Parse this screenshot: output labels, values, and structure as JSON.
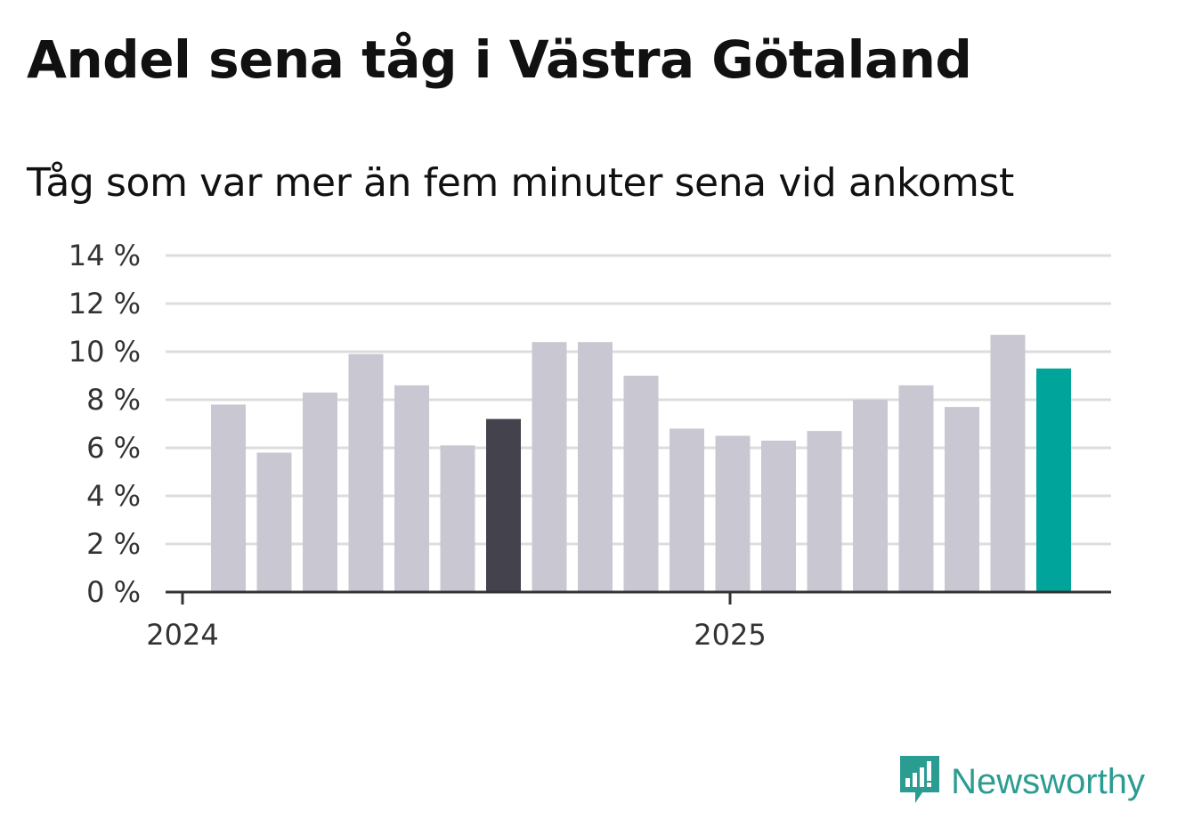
{
  "title": "Andel sena tåg i Västra Götaland",
  "subtitle": "Tåg som var mer än fem minuter sena vid ankomst",
  "brand": {
    "name": "Newsworthy",
    "icon": "newsworthy-logo-icon",
    "color": "#2b9c92"
  },
  "colors": {
    "default_bar": "#c9c8d2",
    "highlight_dark": "#44424d",
    "highlight_accent": "#00a49a",
    "grid": "#dddddd",
    "axis": "#333333"
  },
  "chart_data": {
    "type": "bar",
    "title": "Andel sena tåg i Västra Götaland",
    "subtitle": "Tåg som var mer än fem minuter sena vid ankomst",
    "xlabel": "",
    "ylabel": "",
    "unit": "%",
    "ylim": [
      0,
      14
    ],
    "yticks": [
      0,
      2,
      4,
      6,
      8,
      10,
      12,
      14
    ],
    "ytick_labels": [
      "0 %",
      "2 %",
      "4 %",
      "6 %",
      "8 %",
      "10 %",
      "12 %",
      "14 %"
    ],
    "xtick_labels": [
      "2024",
      "2025"
    ],
    "grid": true,
    "legend": "none",
    "categories": [
      "2024-01",
      "2024-02",
      "2024-03",
      "2024-04",
      "2024-05",
      "2024-06",
      "2024-07",
      "2024-08",
      "2024-09",
      "2024-10",
      "2024-11",
      "2024-12",
      "2025-01",
      "2025-02",
      "2025-03",
      "2025-04",
      "2025-05",
      "2025-06",
      "2025-07",
      "2025-08"
    ],
    "values": [
      null,
      7.8,
      5.8,
      8.3,
      9.9,
      8.6,
      6.1,
      7.2,
      10.4,
      10.4,
      9.0,
      6.8,
      6.5,
      6.3,
      6.7,
      8.0,
      8.6,
      7.7,
      10.7,
      9.3
    ],
    "highlight": [
      {
        "index": 7,
        "color": "#44424d"
      },
      {
        "index": 19,
        "color": "#00a49a"
      }
    ]
  }
}
